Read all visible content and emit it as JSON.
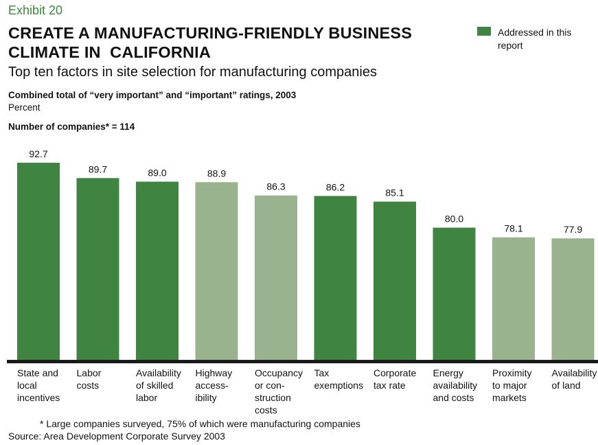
{
  "exhibit": "Exhibit 20",
  "title_lines": [
    "CREATE A MANUFACTURING-FRIENDLY BUSINESS",
    "CLIMATE IN  CALIFORNIA"
  ],
  "subtitle": "Top ten factors in site selection for manufacturing companies",
  "measure_label": "Combined total of “very important” and “important” ratings, 2003",
  "unit_label": "Percent",
  "sample_label": "Number of companies* = 114",
  "legend": {
    "label": "Addressed in this report",
    "color": "#3f8541"
  },
  "colors": {
    "addressed": "#3f8541",
    "other": "#9ab38f"
  },
  "footnote": "* Large companies surveyed, 75% of which were manufacturing companies",
  "source": "Source: Area Development Corporate Survey 2003",
  "chart_data": {
    "type": "bar",
    "title": "Top ten factors in site selection for manufacturing companies",
    "xlabel": "",
    "ylabel": "Percent",
    "ylim": [
      54,
      95
    ],
    "grid": false,
    "legend_position": "top-right",
    "categories": [
      "State and local incentives",
      "Labor costs",
      "Availability of skilled labor",
      "Highway accessibility",
      "Occupancy or construction costs",
      "Tax exemptions",
      "Corporate tax rate",
      "Energy availability and costs",
      "Proximity to major markets",
      "Availability of land"
    ],
    "category_label_lines": [
      [
        "State and",
        "local",
        "incentives"
      ],
      [
        "Labor",
        "costs"
      ],
      [
        "Availability",
        "of skilled",
        "labor"
      ],
      [
        "Highway",
        "access-",
        "ibility"
      ],
      [
        "Occupancy",
        "or con-",
        "struction",
        "costs"
      ],
      [
        "Tax",
        "exemptions"
      ],
      [
        "Corporate",
        "tax rate"
      ],
      [
        "Energy",
        "availability",
        "and costs"
      ],
      [
        "Proximity",
        "to major",
        "markets"
      ],
      [
        "Availability",
        "of land"
      ]
    ],
    "values": [
      92.7,
      89.7,
      89.0,
      88.9,
      86.3,
      86.2,
      85.1,
      80.0,
      78.1,
      77.9
    ],
    "value_labels": [
      "92.7",
      "89.7",
      "89.0",
      "88.9",
      "86.3",
      "86.2",
      "85.1",
      "80.0",
      "78.1",
      "77.9"
    ],
    "addressed_in_report": [
      true,
      true,
      true,
      false,
      false,
      true,
      true,
      true,
      false,
      false
    ]
  }
}
